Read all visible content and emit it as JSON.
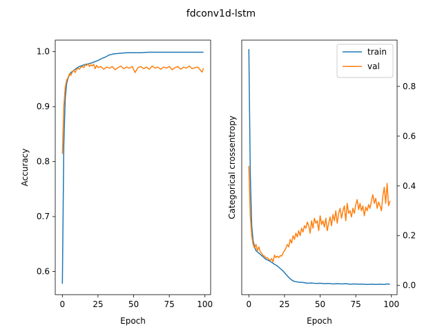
{
  "chart_data": {
    "type": "line",
    "title": "fdconv1d-lstm",
    "panels": [
      {
        "id": "accuracy",
        "xlabel": "Epoch",
        "ylabel": "Accuracy",
        "xlim": [
          -5,
          104
        ],
        "ylim": [
          0.558,
          1.021
        ],
        "xticks": [
          0,
          25,
          50,
          75,
          100
        ],
        "xtick_labels": [
          "0",
          "25",
          "50",
          "75",
          "100"
        ],
        "yticks": [
          0.6,
          0.7,
          0.8,
          0.9,
          1.0
        ],
        "ytick_labels": [
          "0.6",
          "0.7",
          "0.8",
          "0.9",
          "1.0"
        ],
        "y_axis_side": "left",
        "legend": false,
        "series": [
          {
            "name": "train",
            "color": "#1f77b4",
            "points": [
              [
                0,
                0.578
              ],
              [
                1,
                0.83
              ],
              [
                2,
                0.915
              ],
              [
                3,
                0.942
              ],
              [
                4,
                0.952
              ],
              [
                5,
                0.958
              ],
              [
                6,
                0.962
              ],
              [
                8,
                0.966
              ],
              [
                10,
                0.97
              ],
              [
                12,
                0.973
              ],
              [
                15,
                0.976
              ],
              [
                20,
                0.979
              ],
              [
                25,
                0.984
              ],
              [
                28,
                0.988
              ],
              [
                30,
                0.99
              ],
              [
                33,
                0.994
              ],
              [
                36,
                0.996
              ],
              [
                40,
                0.997
              ],
              [
                45,
                0.998
              ],
              [
                50,
                0.998
              ],
              [
                55,
                0.998
              ],
              [
                60,
                0.999
              ],
              [
                65,
                0.999
              ],
              [
                70,
                0.999
              ],
              [
                75,
                0.999
              ],
              [
                80,
                0.999
              ],
              [
                85,
                0.999
              ],
              [
                90,
                0.999
              ],
              [
                95,
                0.999
              ],
              [
                99,
                0.999
              ]
            ]
          },
          {
            "name": "val",
            "color": "#ff7f0e",
            "points": [
              [
                0,
                0.814
              ],
              [
                1,
                0.9
              ],
              [
                2,
                0.935
              ],
              [
                3,
                0.948
              ],
              [
                4,
                0.953
              ],
              [
                5,
                0.96
              ],
              [
                6,
                0.957
              ],
              [
                7,
                0.963
              ],
              [
                8,
                0.966
              ],
              [
                9,
                0.962
              ],
              [
                10,
                0.968
              ],
              [
                11,
                0.97
              ],
              [
                12,
                0.968
              ],
              [
                13,
                0.972
              ],
              [
                14,
                0.973
              ],
              [
                15,
                0.971
              ],
              [
                16,
                0.976
              ],
              [
                17,
                0.975
              ],
              [
                18,
                0.978
              ],
              [
                19,
                0.973
              ],
              [
                20,
                0.976
              ],
              [
                21,
                0.974
              ],
              [
                22,
                0.977
              ],
              [
                23,
                0.969
              ],
              [
                24,
                0.975
              ],
              [
                25,
                0.971
              ],
              [
                27,
                0.973
              ],
              [
                29,
                0.968
              ],
              [
                31,
                0.972
              ],
              [
                33,
                0.97
              ],
              [
                35,
                0.973
              ],
              [
                37,
                0.967
              ],
              [
                39,
                0.971
              ],
              [
                41,
                0.974
              ],
              [
                43,
                0.969
              ],
              [
                45,
                0.972
              ],
              [
                47,
                0.97
              ],
              [
                49,
                0.973
              ],
              [
                51,
                0.962
              ],
              [
                53,
                0.971
              ],
              [
                55,
                0.973
              ],
              [
                57,
                0.969
              ],
              [
                59,
                0.972
              ],
              [
                61,
                0.968
              ],
              [
                63,
                0.974
              ],
              [
                65,
                0.97
              ],
              [
                67,
                0.972
              ],
              [
                69,
                0.968
              ],
              [
                71,
                0.972
              ],
              [
                73,
                0.97
              ],
              [
                75,
                0.973
              ],
              [
                77,
                0.967
              ],
              [
                79,
                0.971
              ],
              [
                81,
                0.973
              ],
              [
                83,
                0.968
              ],
              [
                85,
                0.972
              ],
              [
                87,
                0.97
              ],
              [
                89,
                0.974
              ],
              [
                91,
                0.969
              ],
              [
                93,
                0.971
              ],
              [
                95,
                0.972
              ],
              [
                97,
                0.966
              ],
              [
                98,
                0.963
              ],
              [
                99,
                0.97
              ]
            ]
          }
        ]
      },
      {
        "id": "loss",
        "xlabel": "Epoch",
        "ylabel": "Categorical crossentropy",
        "xlim": [
          -5,
          104
        ],
        "ylim": [
          -0.037,
          0.986
        ],
        "xticks": [
          0,
          25,
          50,
          75,
          100
        ],
        "xtick_labels": [
          "0",
          "25",
          "50",
          "75",
          "100"
        ],
        "yticks": [
          0.0,
          0.2,
          0.4,
          0.6,
          0.8
        ],
        "ytick_labels": [
          "0.0",
          "0.2",
          "0.4",
          "0.6",
          "0.8"
        ],
        "y_axis_side": "right",
        "legend": true,
        "legend_position": "top-right",
        "series": [
          {
            "name": "train",
            "color": "#1f77b4",
            "points": [
              [
                0,
                0.95
              ],
              [
                1,
                0.45
              ],
              [
                2,
                0.24
              ],
              [
                3,
                0.18
              ],
              [
                4,
                0.155
              ],
              [
                5,
                0.14
              ],
              [
                6,
                0.135
              ],
              [
                8,
                0.125
              ],
              [
                10,
                0.115
              ],
              [
                12,
                0.105
              ],
              [
                14,
                0.1
              ],
              [
                16,
                0.093
              ],
              [
                18,
                0.085
              ],
              [
                20,
                0.078
              ],
              [
                22,
                0.068
              ],
              [
                24,
                0.058
              ],
              [
                26,
                0.045
              ],
              [
                28,
                0.032
              ],
              [
                30,
                0.022
              ],
              [
                32,
                0.016
              ],
              [
                35,
                0.013
              ],
              [
                38,
                0.012
              ],
              [
                41,
                0.009
              ],
              [
                44,
                0.01
              ],
              [
                47,
                0.008
              ],
              [
                50,
                0.009
              ],
              [
                53,
                0.007
              ],
              [
                56,
                0.008
              ],
              [
                59,
                0.006
              ],
              [
                62,
                0.007
              ],
              [
                65,
                0.006
              ],
              [
                68,
                0.007
              ],
              [
                71,
                0.005
              ],
              [
                74,
                0.006
              ],
              [
                77,
                0.005
              ],
              [
                80,
                0.005
              ],
              [
                83,
                0.004
              ],
              [
                86,
                0.005
              ],
              [
                89,
                0.004
              ],
              [
                92,
                0.005
              ],
              [
                95,
                0.004
              ],
              [
                97,
                0.006
              ],
              [
                99,
                0.005
              ]
            ]
          },
          {
            "name": "val",
            "color": "#ff7f0e",
            "points": [
              [
                0,
                0.48
              ],
              [
                1,
                0.28
              ],
              [
                2,
                0.2
              ],
              [
                3,
                0.165
              ],
              [
                4,
                0.15
              ],
              [
                5,
                0.165
              ],
              [
                6,
                0.14
              ],
              [
                7,
                0.155
              ],
              [
                8,
                0.135
              ],
              [
                9,
                0.13
              ],
              [
                10,
                0.12
              ],
              [
                11,
                0.118
              ],
              [
                12,
                0.11
              ],
              [
                13,
                0.112
              ],
              [
                14,
                0.105
              ],
              [
                15,
                0.1
              ],
              [
                16,
                0.108
              ],
              [
                17,
                0.095
              ],
              [
                18,
                0.122
              ],
              [
                19,
                0.112
              ],
              [
                20,
                0.118
              ],
              [
                21,
                0.112
              ],
              [
                22,
                0.12
              ],
              [
                23,
                0.118
              ],
              [
                24,
                0.13
              ],
              [
                25,
                0.14
              ],
              [
                26,
                0.15
              ],
              [
                27,
                0.165
              ],
              [
                28,
                0.155
              ],
              [
                29,
                0.185
              ],
              [
                30,
                0.17
              ],
              [
                31,
                0.2
              ],
              [
                32,
                0.185
              ],
              [
                33,
                0.21
              ],
              [
                34,
                0.195
              ],
              [
                35,
                0.22
              ],
              [
                36,
                0.2
              ],
              [
                37,
                0.23
              ],
              [
                38,
                0.215
              ],
              [
                39,
                0.24
              ],
              [
                40,
                0.23
              ],
              [
                41,
                0.255
              ],
              [
                42,
                0.24
              ],
              [
                43,
                0.21
              ],
              [
                44,
                0.26
              ],
              [
                45,
                0.23
              ],
              [
                46,
                0.27
              ],
              [
                47,
                0.25
              ],
              [
                48,
                0.26
              ],
              [
                49,
                0.22
              ],
              [
                50,
                0.28
              ],
              [
                51,
                0.245
              ],
              [
                52,
                0.26
              ],
              [
                53,
                0.235
              ],
              [
                54,
                0.27
              ],
              [
                55,
                0.22
              ],
              [
                56,
                0.25
              ],
              [
                57,
                0.275
              ],
              [
                58,
                0.24
              ],
              [
                59,
                0.285
              ],
              [
                60,
                0.26
              ],
              [
                61,
                0.3
              ],
              [
                62,
                0.25
              ],
              [
                63,
                0.29
              ],
              [
                64,
                0.31
              ],
              [
                65,
                0.27
              ],
              [
                66,
                0.3
              ],
              [
                67,
                0.32
              ],
              [
                68,
                0.26
              ],
              [
                69,
                0.33
              ],
              [
                70,
                0.29
              ],
              [
                71,
                0.3
              ],
              [
                72,
                0.275
              ],
              [
                73,
                0.31
              ],
              [
                74,
                0.29
              ],
              [
                75,
                0.325
              ],
              [
                76,
                0.345
              ],
              [
                77,
                0.305
              ],
              [
                78,
                0.33
              ],
              [
                79,
                0.3
              ],
              [
                80,
                0.32
              ],
              [
                81,
                0.28
              ],
              [
                82,
                0.315
              ],
              [
                83,
                0.3
              ],
              [
                84,
                0.325
              ],
              [
                85,
                0.31
              ],
              [
                86,
                0.34
              ],
              [
                87,
                0.365
              ],
              [
                88,
                0.33
              ],
              [
                89,
                0.35
              ],
              [
                90,
                0.31
              ],
              [
                91,
                0.335
              ],
              [
                92,
                0.32
              ],
              [
                93,
                0.3
              ],
              [
                94,
                0.36
              ],
              [
                95,
                0.395
              ],
              [
                96,
                0.33
              ],
              [
                97,
                0.41
              ],
              [
                98,
                0.32
              ],
              [
                99,
                0.34
              ]
            ]
          }
        ]
      }
    ]
  }
}
